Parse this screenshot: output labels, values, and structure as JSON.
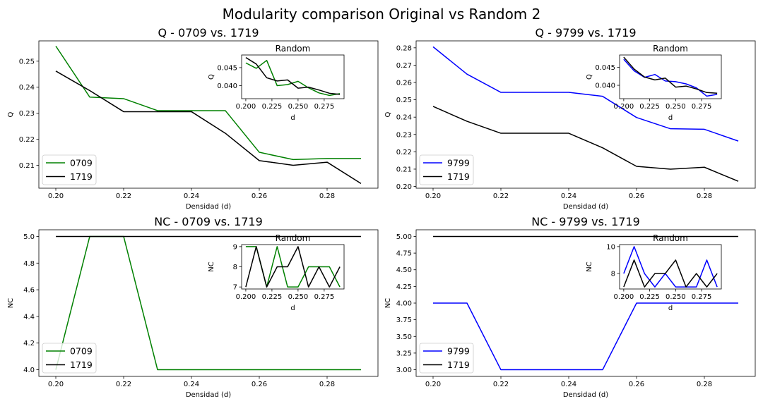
{
  "figure": {
    "title": "Modularity comparison Original vs Random 2"
  },
  "chart_data": [
    {
      "id": "q0709",
      "type": "line",
      "title": "Q - 0709 vs. 1719",
      "xlabel": "Densidad (d)",
      "ylabel": "Q",
      "xlim": [
        0.195,
        0.295
      ],
      "ylim": [
        0.2012,
        0.2578
      ],
      "xticks": [
        0.2,
        0.22,
        0.24,
        0.26,
        0.28
      ],
      "xtick_decimals": 2,
      "yticks": [
        0.21,
        0.22,
        0.23,
        0.24,
        0.25
      ],
      "ytick_decimals": 2,
      "legend": "lower-left",
      "x": [
        0.2,
        0.21,
        0.22,
        0.23,
        0.24,
        0.25,
        0.26,
        0.27,
        0.28,
        0.29
      ],
      "series": [
        {
          "name": "0709",
          "color": "#008000",
          "values": [
            0.2558,
            0.2362,
            0.2356,
            0.231,
            0.231,
            0.231,
            0.215,
            0.2122,
            0.2126,
            0.2126
          ]
        },
        {
          "name": "1719",
          "color": "#000000",
          "values": [
            0.2462,
            0.2387,
            0.2306,
            0.2306,
            0.2306,
            0.2223,
            0.2118,
            0.21,
            0.2112,
            0.203
          ]
        }
      ],
      "inset": {
        "title": "Random",
        "xlabel": "d",
        "ylabel": "Q",
        "xlim": [
          0.196,
          0.294
        ],
        "ylim": [
          0.0364,
          0.0485
        ],
        "xticks": [
          0.2,
          0.225,
          0.25,
          0.275
        ],
        "xtick_decimals": 3,
        "yticks": [
          0.04,
          0.045
        ],
        "ytick_decimals": 3,
        "series": [
          {
            "name": "0709",
            "color": "#008000",
            "values": [
              0.0463,
              0.0448,
              0.047,
              0.04,
              0.0403,
              0.0412,
              0.0394,
              0.038,
              0.0373,
              0.0378
            ]
          },
          {
            "name": "1719",
            "color": "#000000",
            "values": [
              0.0478,
              0.046,
              0.0422,
              0.0413,
              0.0416,
              0.0393,
              0.0396,
              0.0388,
              0.0379,
              0.0376
            ]
          }
        ]
      }
    },
    {
      "id": "q9799",
      "type": "line",
      "title": "Q - 9799 vs. 1719",
      "xlabel": "Densidad (d)",
      "ylabel": "Q",
      "xlim": [
        0.195,
        0.295
      ],
      "ylim": [
        0.199,
        0.284
      ],
      "xticks": [
        0.2,
        0.22,
        0.24,
        0.26,
        0.28
      ],
      "xtick_decimals": 2,
      "yticks": [
        0.2,
        0.21,
        0.22,
        0.23,
        0.24,
        0.25,
        0.26,
        0.27,
        0.28
      ],
      "ytick_decimals": 2,
      "legend": "lower-left",
      "x": [
        0.2,
        0.21,
        0.22,
        0.23,
        0.24,
        0.25,
        0.26,
        0.27,
        0.28,
        0.29
      ],
      "series": [
        {
          "name": "9799",
          "color": "#0000ff",
          "values": [
            0.2806,
            0.2648,
            0.2543,
            0.2543,
            0.2543,
            0.252,
            0.2398,
            0.2333,
            0.233,
            0.2262
          ]
        },
        {
          "name": "1719",
          "color": "#000000",
          "values": [
            0.2462,
            0.2376,
            0.2307,
            0.2307,
            0.2307,
            0.2223,
            0.2116,
            0.21,
            0.2111,
            0.203
          ]
        }
      ],
      "inset": {
        "title": "Random",
        "xlabel": "d",
        "ylabel": "Q",
        "xlim": [
          0.196,
          0.294
        ],
        "ylim": [
          0.0363,
          0.0484
        ],
        "xticks": [
          0.2,
          0.225,
          0.25,
          0.275
        ],
        "xtick_decimals": 3,
        "yticks": [
          0.04,
          0.045
        ],
        "ytick_decimals": 3,
        "series": [
          {
            "name": "9799",
            "color": "#0000ff",
            "values": [
              0.0472,
              0.044,
              0.0422,
              0.043,
              0.0412,
              0.041,
              0.0404,
              0.0393,
              0.037,
              0.0375
            ]
          },
          {
            "name": "1719",
            "color": "#000000",
            "values": [
              0.0478,
              0.0445,
              0.0423,
              0.0415,
              0.042,
              0.0395,
              0.0398,
              0.039,
              0.038,
              0.0378
            ]
          }
        ]
      }
    },
    {
      "id": "nc0709",
      "type": "line",
      "title": "NC - 0709 vs. 1719",
      "xlabel": "Densidad (d)",
      "ylabel": "NC",
      "xlim": [
        0.195,
        0.295
      ],
      "ylim": [
        3.95,
        5.05
      ],
      "xticks": [
        0.2,
        0.22,
        0.24,
        0.26,
        0.28
      ],
      "xtick_decimals": 2,
      "yticks": [
        4.0,
        4.2,
        4.4,
        4.6,
        4.8,
        5.0
      ],
      "ytick_decimals": 1,
      "legend": "lower-left",
      "x": [
        0.2,
        0.21,
        0.22,
        0.23,
        0.24,
        0.25,
        0.26,
        0.27,
        0.28,
        0.29
      ],
      "series": [
        {
          "name": "0709",
          "color": "#008000",
          "values": [
            4,
            5,
            5,
            4,
            4,
            4,
            4,
            4,
            4,
            4
          ]
        },
        {
          "name": "1719",
          "color": "#000000",
          "values": [
            5,
            5,
            5,
            5,
            5,
            5,
            5,
            5,
            5,
            5
          ]
        }
      ],
      "inset": {
        "title": "Random",
        "xlabel": "d",
        "ylabel": "NC",
        "xlim": [
          0.196,
          0.294
        ],
        "ylim": [
          6.9,
          9.1
        ],
        "xticks": [
          0.2,
          0.225,
          0.25,
          0.275
        ],
        "xtick_decimals": 3,
        "yticks": [
          7,
          8,
          9
        ],
        "ytick_decimals": 0,
        "series": [
          {
            "name": "0709",
            "color": "#008000",
            "values": [
              9,
              9,
              7,
              9,
              7,
              7,
              8,
              8,
              8,
              7
            ]
          },
          {
            "name": "1719",
            "color": "#000000",
            "values": [
              7,
              9,
              7,
              8,
              8,
              9,
              7,
              8,
              7,
              8
            ]
          }
        ]
      }
    },
    {
      "id": "nc9799",
      "type": "line",
      "title": "NC - 9799 vs. 1719",
      "xlabel": "Densidad (d)",
      "ylabel": "NC",
      "xlim": [
        0.195,
        0.295
      ],
      "ylim": [
        2.9,
        5.1
      ],
      "xticks": [
        0.2,
        0.22,
        0.24,
        0.26,
        0.28
      ],
      "xtick_decimals": 2,
      "yticks": [
        3.0,
        3.25,
        3.5,
        3.75,
        4.0,
        4.25,
        4.5,
        4.75,
        5.0
      ],
      "ytick_decimals": 2,
      "legend": "lower-left",
      "x": [
        0.2,
        0.21,
        0.22,
        0.23,
        0.24,
        0.25,
        0.26,
        0.27,
        0.28,
        0.29
      ],
      "series": [
        {
          "name": "9799",
          "color": "#0000ff",
          "values": [
            4,
            4,
            3,
            3,
            3,
            3,
            4,
            4,
            4,
            4
          ]
        },
        {
          "name": "1719",
          "color": "#000000",
          "values": [
            5,
            5,
            5,
            5,
            5,
            5,
            5,
            5,
            5,
            5
          ]
        }
      ],
      "inset": {
        "title": "Random",
        "xlabel": "d",
        "ylabel": "NC",
        "xlim": [
          0.196,
          0.294
        ],
        "ylim": [
          6.85,
          10.15
        ],
        "xticks": [
          0.2,
          0.225,
          0.25,
          0.275
        ],
        "xtick_decimals": 3,
        "yticks": [
          8,
          10
        ],
        "ytick_decimals": 0,
        "series": [
          {
            "name": "9799",
            "color": "#0000ff",
            "values": [
              8,
              10,
              8,
              7,
              8,
              7,
              7,
              7,
              9,
              7
            ]
          },
          {
            "name": "1719",
            "color": "#000000",
            "values": [
              7,
              9,
              7,
              8,
              8,
              9,
              7,
              8,
              7,
              8
            ]
          }
        ]
      }
    }
  ]
}
